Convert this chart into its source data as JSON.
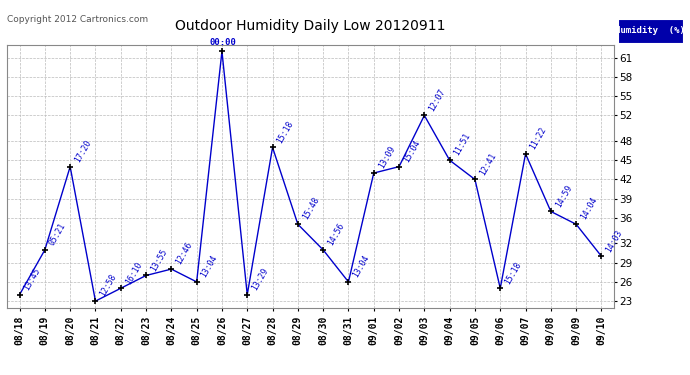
{
  "title": "Outdoor Humidity Daily Low 20120911",
  "copyright": "Copyright 2012 Cartronics.com",
  "legend_label": "Humidity  (%)",
  "x_labels": [
    "08/18",
    "08/19",
    "08/20",
    "08/21",
    "08/22",
    "08/23",
    "08/24",
    "08/25",
    "08/26",
    "08/27",
    "08/28",
    "08/29",
    "08/30",
    "08/31",
    "09/01",
    "09/02",
    "09/03",
    "09/04",
    "09/05",
    "09/06",
    "09/07",
    "09/08",
    "09/09",
    "09/10"
  ],
  "y_values": [
    24,
    31,
    44,
    23,
    25,
    27,
    28,
    26,
    62,
    24,
    47,
    35,
    31,
    26,
    43,
    44,
    52,
    45,
    42,
    25,
    46,
    37,
    35,
    30
  ],
  "point_labels": [
    "13:45",
    "05:21",
    "17:20",
    "12:58",
    "16:10",
    "13:55",
    "12:46",
    "13:04",
    "00:00",
    "13:29",
    "15:18",
    "15:48",
    "14:56",
    "13:04",
    "13:09",
    "15:04",
    "12:07",
    "11:51",
    "12:41",
    "15:18",
    "11:22",
    "14:59",
    "14:04",
    "14:03"
  ],
  "ylim": [
    22,
    63
  ],
  "yticks": [
    23,
    26,
    29,
    32,
    36,
    39,
    42,
    45,
    48,
    52,
    55,
    58,
    61
  ],
  "line_color": "#0000CC",
  "marker_color": "#000000",
  "bg_color": "#FFFFFF",
  "grid_color": "#BBBBBB",
  "title_color": "#000000",
  "legend_bg": "#0000AA",
  "legend_text_color": "#FFFFFF",
  "figwidth": 6.9,
  "figheight": 3.75,
  "dpi": 100
}
